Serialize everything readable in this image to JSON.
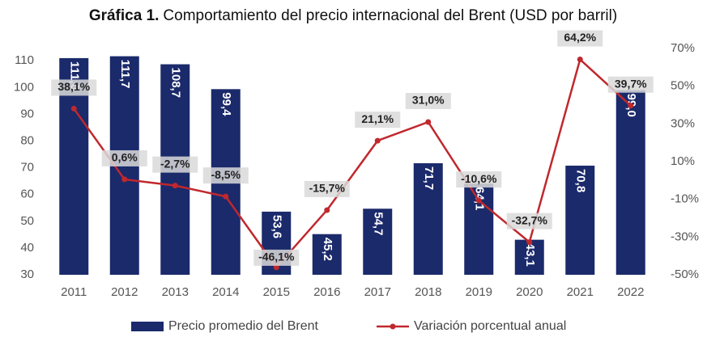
{
  "chart_data": {
    "type": "bar",
    "title_label": "Gráfica 1.",
    "title": "Comportamiento del precio internacional del Brent (USD por barril)",
    "categories": [
      "2011",
      "2012",
      "2013",
      "2014",
      "2015",
      "2016",
      "2017",
      "2018",
      "2019",
      "2020",
      "2021",
      "2022"
    ],
    "series": [
      {
        "name": "Precio promedio del Brent",
        "type": "bar",
        "color": "#1b2a6b",
        "values": [
          111.0,
          111.7,
          108.7,
          99.4,
          53.6,
          45.2,
          54.7,
          71.7,
          64.1,
          43.1,
          70.8,
          99.0
        ],
        "value_labels": [
          "111,0",
          "111,7",
          "108,7",
          "99,4",
          "53,6",
          "45,2",
          "54,7",
          "71,7",
          "64,1",
          "43,1",
          "70,8",
          "99,0"
        ]
      },
      {
        "name": "Variación porcentual anual",
        "type": "line",
        "color": "#c0282d",
        "axis": "y2",
        "values": [
          38.1,
          0.6,
          -2.7,
          -8.5,
          -46.1,
          -15.7,
          21.1,
          31.0,
          -10.6,
          -32.7,
          64.2,
          39.7
        ],
        "value_labels": [
          "38,1%",
          "0,6%",
          "-2,7%",
          "-8,5%",
          "-46,1%",
          "-15,7%",
          "21,1%",
          "31,0%",
          "-10,6%",
          "-32,7%",
          "64,2%",
          "39,7%"
        ]
      }
    ],
    "ylim": [
      30,
      114.6
    ],
    "yticks": [
      30,
      40,
      50,
      60,
      70,
      80,
      90,
      100,
      110
    ],
    "y2lim": [
      -50,
      70
    ],
    "y2ticks": [
      {
        "value": -50,
        "label": "-50%"
      },
      {
        "value": -30,
        "label": "-30%"
      },
      {
        "value": -10,
        "label": "-10%"
      },
      {
        "value": 10,
        "label": "10%"
      },
      {
        "value": 30,
        "label": "30%"
      },
      {
        "value": 50,
        "label": "50%"
      },
      {
        "value": 70,
        "label": "70%"
      }
    ],
    "legend": "bottom"
  }
}
